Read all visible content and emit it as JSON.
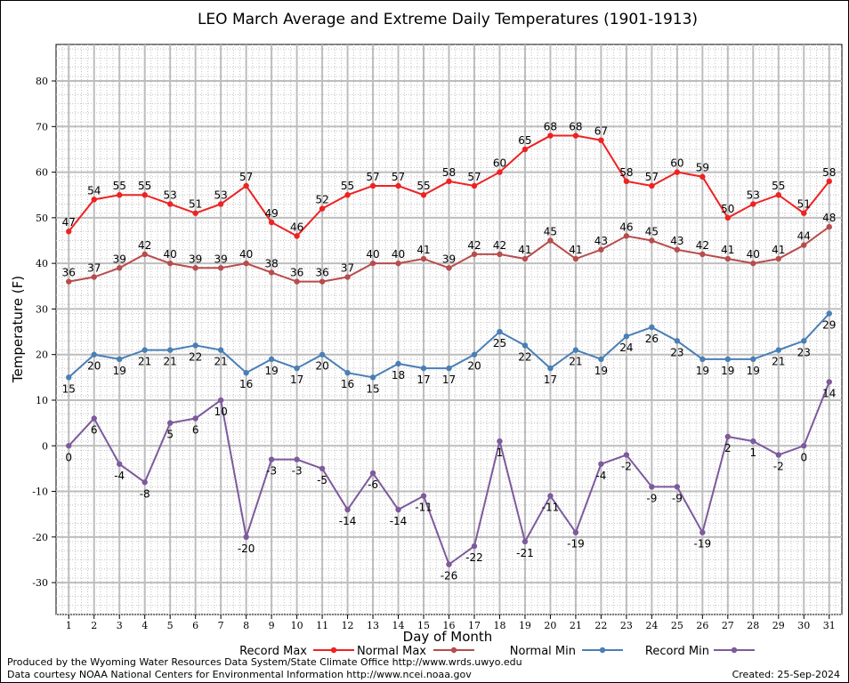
{
  "chart_data": {
    "type": "line",
    "title": "LEO March Average and Extreme Daily Temperatures (1901-1913)",
    "xlabel": "Day of Month",
    "ylabel": "Temperature (F)",
    "ylim": [
      -37,
      88
    ],
    "yticks": [
      -30,
      -20,
      -10,
      0,
      10,
      20,
      30,
      40,
      50,
      60,
      70,
      80
    ],
    "grid": true,
    "legend_position": "bottom",
    "x": [
      1,
      2,
      3,
      4,
      5,
      6,
      7,
      8,
      9,
      10,
      11,
      12,
      13,
      14,
      15,
      16,
      17,
      18,
      19,
      20,
      21,
      22,
      23,
      24,
      25,
      26,
      27,
      28,
      29,
      30,
      31
    ],
    "series": [
      {
        "name": "Record Max",
        "color": "#ee2222",
        "values": [
          47,
          54,
          55,
          55,
          53,
          51,
          53,
          57,
          49,
          46,
          52,
          55,
          57,
          57,
          55,
          58,
          57,
          60,
          65,
          68,
          68,
          67,
          58,
          57,
          60,
          59,
          50,
          53,
          55,
          51,
          58
        ]
      },
      {
        "name": "Normal Max",
        "color": "#b84c4c",
        "values": [
          36,
          37,
          39,
          42,
          40,
          39,
          39,
          40,
          38,
          36,
          36,
          37,
          40,
          40,
          41,
          39,
          42,
          42,
          41,
          45,
          41,
          43,
          46,
          45,
          43,
          42,
          41,
          40,
          41,
          44,
          48
        ]
      },
      {
        "name": "Normal Min",
        "color": "#4a7fb5",
        "values": [
          15,
          20,
          19,
          21,
          21,
          22,
          21,
          16,
          19,
          17,
          20,
          16,
          15,
          18,
          17,
          17,
          20,
          25,
          22,
          17,
          21,
          19,
          24,
          26,
          23,
          19,
          19,
          19,
          21,
          23,
          29
        ]
      },
      {
        "name": "Record Min",
        "color": "#7d5a9c",
        "values": [
          0,
          6,
          -4,
          -8,
          5,
          6,
          10,
          -20,
          -3,
          -3,
          -5,
          -14,
          -6,
          -14,
          -11,
          -26,
          -22,
          1,
          -21,
          -11,
          -19,
          -4,
          -2,
          -9,
          -9,
          -19,
          2,
          1,
          -2,
          0,
          14
        ]
      }
    ]
  },
  "footer": {
    "produced_by": "Produced by the Wyoming Water Resources Data System/State Climate Office http://www.wrds.uwyo.edu",
    "courtesy": "Data courtesy NOAA National Centers for Environmental Information http://www.ncei.noaa.gov",
    "created": "Created:  25-Sep-2024"
  }
}
